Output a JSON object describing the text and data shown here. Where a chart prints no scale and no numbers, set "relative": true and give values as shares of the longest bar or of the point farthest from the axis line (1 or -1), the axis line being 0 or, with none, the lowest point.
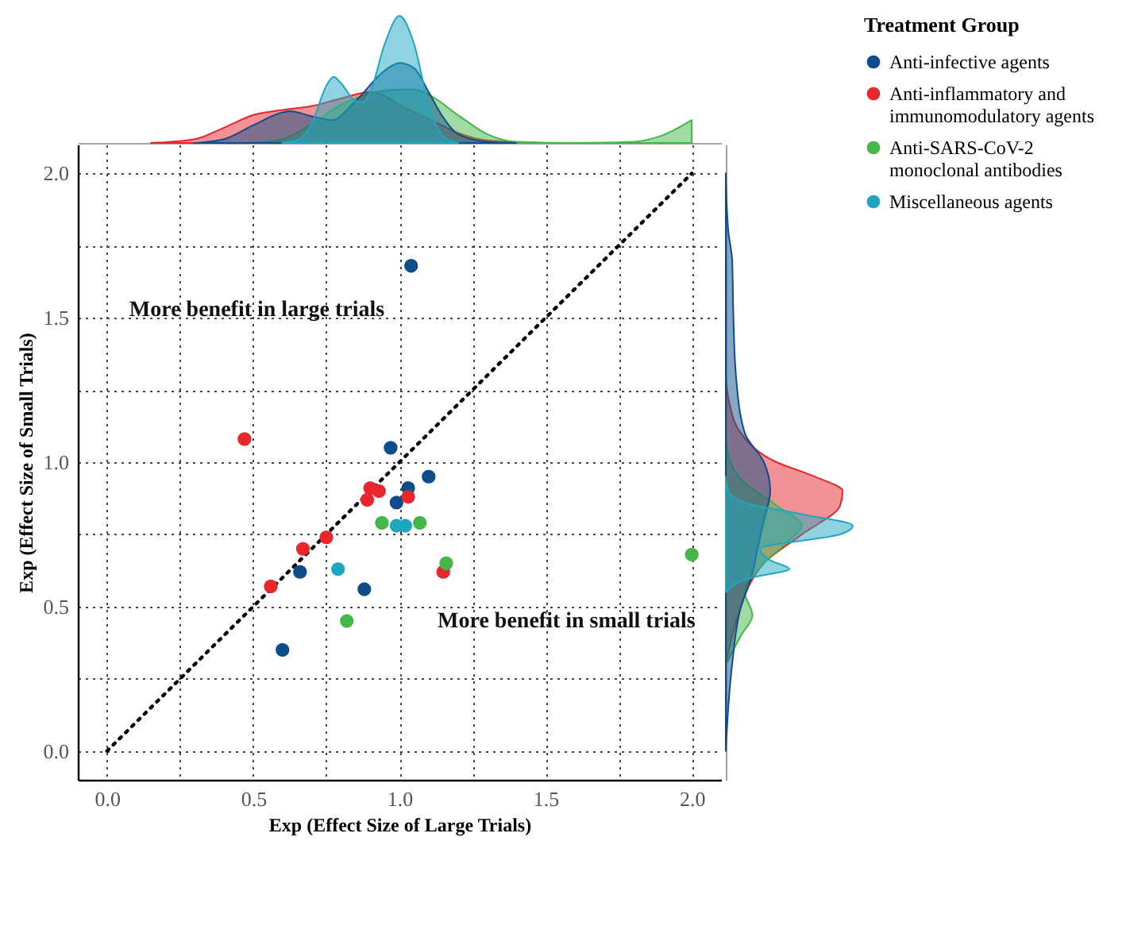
{
  "chart_data": [
    {
      "type": "area",
      "relative": true,
      "tick_labels": false,
      "xlim": [
        -0.1,
        2.1
      ],
      "series": [
        {
          "color": "#e8262c",
          "x": [
            0.15,
            0.3,
            0.4,
            0.5,
            0.6,
            0.7,
            0.8,
            0.9,
            0.95,
            1.0,
            1.1,
            1.2,
            1.3,
            1.5,
            2.0
          ],
          "values": [
            0,
            0.03,
            0.12,
            0.22,
            0.26,
            0.29,
            0.35,
            0.4,
            0.37,
            0.3,
            0.19,
            0.08,
            0.02,
            0,
            0
          ]
        },
        {
          "color": "#45b649",
          "x": [
            0.5,
            0.6,
            0.7,
            0.8,
            0.9,
            1.0,
            1.05,
            1.1,
            1.2,
            1.3,
            1.4,
            1.6,
            1.8,
            1.9,
            2.0
          ],
          "values": [
            0,
            0.03,
            0.15,
            0.3,
            0.39,
            0.42,
            0.42,
            0.38,
            0.22,
            0.07,
            0.01,
            0,
            0.01,
            0.06,
            0.18
          ]
        },
        {
          "color": "#0d4d8c",
          "x": [
            0.3,
            0.4,
            0.5,
            0.6,
            0.625,
            0.7,
            0.77,
            0.85,
            0.95,
            1.0,
            1.05,
            1.1,
            1.15,
            1.2,
            1.3,
            1.4
          ],
          "values": [
            0,
            0.03,
            0.14,
            0.24,
            0.25,
            0.21,
            0.18,
            0.33,
            0.57,
            0.63,
            0.59,
            0.4,
            0.2,
            0.07,
            0.01,
            0
          ]
        },
        {
          "color": "#1fa7c2",
          "x": [
            0.6,
            0.65,
            0.7,
            0.75,
            0.775,
            0.8,
            0.85,
            0.875,
            0.9,
            0.95,
            1.0,
            1.05,
            1.1,
            1.15,
            1.2
          ],
          "values": [
            0,
            0.02,
            0.15,
            0.45,
            0.52,
            0.47,
            0.33,
            0.32,
            0.4,
            0.78,
            1.0,
            0.78,
            0.3,
            0.05,
            0
          ]
        }
      ]
    },
    {
      "type": "scatter",
      "marker": "circle",
      "grid": true,
      "legend": "right",
      "legend_title": "Treatment Group",
      "xlabel": "Exp (Effect Size of Large Trials)",
      "ylabel": "Exp (Effect Size of Small Trials)",
      "xlim": [
        -0.1,
        2.1
      ],
      "ylim": [
        -0.1,
        2.1
      ],
      "xticks": [
        {
          "value": 0,
          "label": "0.0"
        },
        {
          "value": 0.25,
          "label": null
        },
        {
          "value": 0.5,
          "label": "0.5"
        },
        {
          "value": 0.75,
          "label": null
        },
        {
          "value": 1,
          "label": "1.0"
        },
        {
          "value": 1.25,
          "label": null
        },
        {
          "value": 1.5,
          "label": "1.5"
        },
        {
          "value": 1.75,
          "label": null
        },
        {
          "value": 2,
          "label": "2.0"
        }
      ],
      "yticks": [
        {
          "value": 0,
          "label": "0.0"
        },
        {
          "value": 0.25,
          "label": null
        },
        {
          "value": 0.5,
          "label": "0.5"
        },
        {
          "value": 0.75,
          "label": null
        },
        {
          "value": 1,
          "label": "1.0"
        },
        {
          "value": 1.25,
          "label": null
        },
        {
          "value": 1.5,
          "label": "1.5"
        },
        {
          "value": 1.75,
          "label": null
        },
        {
          "value": 2,
          "label": "2.0"
        }
      ],
      "annotations": [
        "More benefit in large trials",
        "More benefit in small trials"
      ],
      "series": [
        {
          "type": "line",
          "line_style": "dotted",
          "marker": "none",
          "color": "#000000",
          "x": [
            0,
            2
          ],
          "values": [
            0,
            2
          ]
        },
        {
          "name": "Anti-infective agents",
          "color": "#0d4d8c",
          "x": [
            1.04,
            0.97,
            1.1,
            1.03,
            0.99,
            0.66,
            0.88,
            0.6
          ],
          "values": [
            1.68,
            1.05,
            0.95,
            0.91,
            0.86,
            0.62,
            0.56,
            0.35
          ]
        },
        {
          "name": "Anti-inflammatory and immunomodulatory agents",
          "color": "#e8262c",
          "x": [
            0.47,
            0.9,
            0.93,
            0.89,
            1.03,
            0.75,
            0.67,
            0.56,
            1.15
          ],
          "values": [
            1.08,
            0.91,
            0.9,
            0.87,
            0.88,
            0.74,
            0.7,
            0.57,
            0.62
          ]
        },
        {
          "name": "Anti-SARS-CoV-2 monoclonal antibodies",
          "color": "#45b649",
          "x": [
            0.94,
            1.07,
            1.16,
            0.82,
            2.0
          ],
          "values": [
            0.79,
            0.79,
            0.65,
            0.45,
            0.68
          ]
        },
        {
          "name": "Miscellaneous agents",
          "color": "#1fa7c2",
          "x": [
            0.99,
            1.02,
            0.79
          ],
          "values": [
            0.78,
            0.78,
            0.63
          ]
        }
      ]
    },
    {
      "type": "area",
      "relative": true,
      "tick_labels": false,
      "orientation": "horizontal",
      "ylim": [
        -0.1,
        2.1
      ],
      "series": [
        {
          "color": "#e8262c",
          "x": [
            0.3,
            0.4,
            0.5,
            0.57,
            0.65,
            0.75,
            0.85,
            0.9,
            0.95,
            1.0,
            1.1,
            1.2,
            1.3
          ],
          "values": [
            0,
            0.05,
            0.12,
            0.18,
            0.3,
            0.6,
            0.9,
            0.92,
            0.7,
            0.4,
            0.12,
            0.03,
            0
          ]
        },
        {
          "color": "#45b649",
          "x": [
            0.3,
            0.4,
            0.47,
            0.55,
            0.65,
            0.73,
            0.78,
            0.85,
            0.95,
            1.05,
            1.2
          ],
          "values": [
            0,
            0.12,
            0.21,
            0.15,
            0.3,
            0.5,
            0.6,
            0.4,
            0.1,
            0.01,
            0
          ]
        },
        {
          "color": "#0d4d8c",
          "x": [
            0,
            0.3,
            0.5,
            0.6,
            0.7,
            0.8,
            0.9,
            1.0,
            1.1,
            1.3,
            1.5,
            1.7,
            1.8,
            2.0
          ],
          "values": [
            0,
            0.05,
            0.12,
            0.2,
            0.25,
            0.3,
            0.35,
            0.3,
            0.15,
            0.08,
            0.06,
            0.05,
            0.02,
            0
          ]
        },
        {
          "color": "#1fa7c2",
          "x": [
            0.55,
            0.6,
            0.63,
            0.66,
            0.7,
            0.75,
            0.78,
            0.82,
            0.86,
            0.9,
            0.95
          ],
          "values": [
            0,
            0.2,
            0.5,
            0.35,
            0.27,
            0.9,
            1.0,
            0.6,
            0.15,
            0.02,
            0
          ]
        }
      ]
    }
  ]
}
